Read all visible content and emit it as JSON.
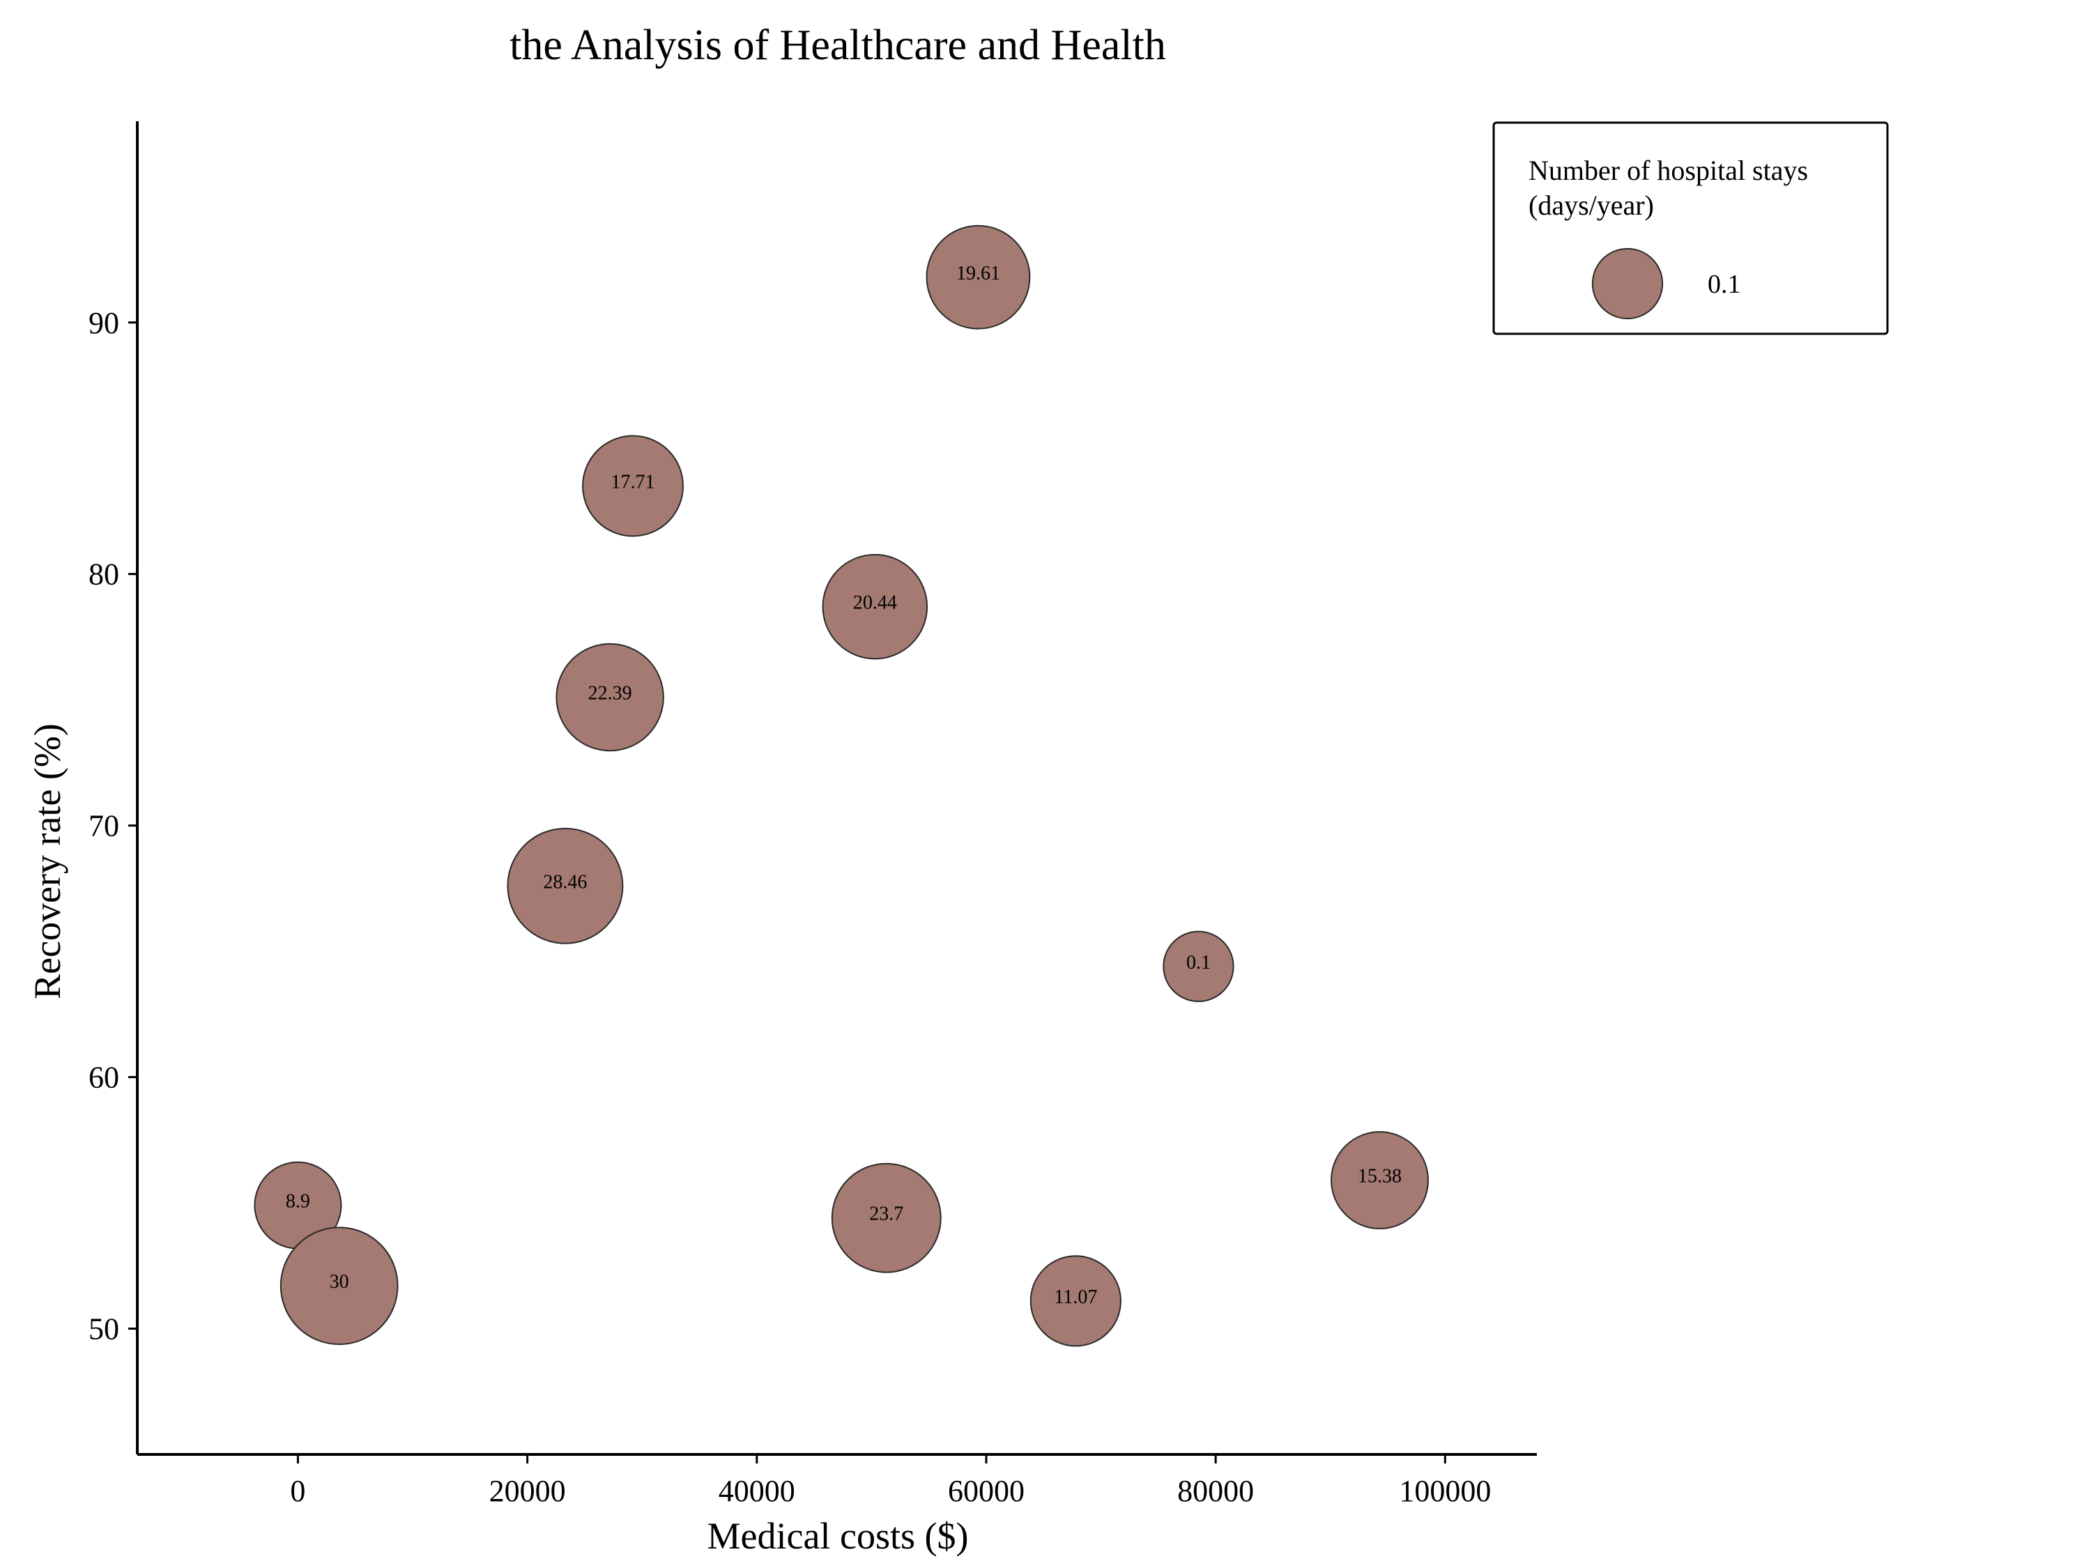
{
  "chart_data": {
    "type": "scatter",
    "title": "the Analysis of Healthcare and Health",
    "xlabel": "Medical costs ($)",
    "ylabel": "Recovery rate (%)",
    "xlim": [
      -14000,
      108000
    ],
    "ylim": [
      45,
      98
    ],
    "xticks": [
      0,
      20000,
      40000,
      60000,
      80000,
      100000
    ],
    "xtick_labels": [
      "0",
      "20000",
      "40000",
      "60000",
      "80000",
      "100000"
    ],
    "yticks": [
      50,
      60,
      70,
      80,
      90
    ],
    "ytick_labels": [
      "50",
      "60",
      "70",
      "80",
      "90"
    ],
    "grid": false,
    "legend": {
      "position": "top-right",
      "title_lines": [
        "Number of hospital stays",
        "(days/year)"
      ],
      "entries": [
        {
          "label": "0.1",
          "size": 0.1
        }
      ]
    },
    "series": [
      {
        "points": [
          {
            "x": 59300,
            "y": 91.8,
            "size": 19.61,
            "label": "19.61"
          },
          {
            "x": 29200,
            "y": 83.5,
            "size": 17.71,
            "label": "17.71"
          },
          {
            "x": 50300,
            "y": 78.7,
            "size": 20.44,
            "label": "20.44"
          },
          {
            "x": 27200,
            "y": 75.1,
            "size": 22.39,
            "label": "22.39"
          },
          {
            "x": 23300,
            "y": 67.6,
            "size": 28.46,
            "label": "28.46"
          },
          {
            "x": 78500,
            "y": 64.4,
            "size": 0.1,
            "label": "0.1"
          },
          {
            "x": 0,
            "y": 54.9,
            "size": 8.9,
            "label": "8.9"
          },
          {
            "x": 3600,
            "y": 51.7,
            "size": 30,
            "label": "30"
          },
          {
            "x": 51300,
            "y": 54.4,
            "size": 23.7,
            "label": "23.7"
          },
          {
            "x": 67800,
            "y": 51.1,
            "size": 11.07,
            "label": "11.07"
          },
          {
            "x": 94300,
            "y": 55.9,
            "size": 15.38,
            "label": "15.38"
          }
        ]
      }
    ],
    "colors": {
      "bubble_fill": "#a47a72",
      "bubble_edge": "#2a2a2a",
      "axis": "#000000"
    }
  }
}
